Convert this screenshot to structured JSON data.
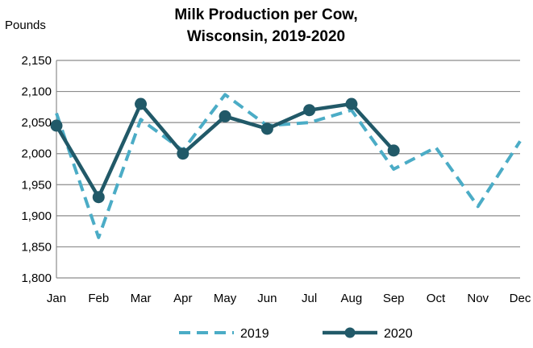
{
  "chart_data": {
    "type": "line",
    "title_line1": "Milk Production per Cow,",
    "title_line2": "Wisconsin, 2019-2020",
    "ylabel": "Pounds",
    "xlabel": "",
    "categories": [
      "Jan",
      "Feb",
      "Mar",
      "Apr",
      "May",
      "Jun",
      "Jul",
      "Aug",
      "Sep",
      "Oct",
      "Nov",
      "Dec"
    ],
    "ylim": [
      1800,
      2150
    ],
    "yticks": [
      1800,
      1850,
      1900,
      1950,
      2000,
      2050,
      2100,
      2150
    ],
    "ytick_labels": [
      "1,800",
      "1,850",
      "1,900",
      "1,950",
      "2,000",
      "2,050",
      "2,100",
      "2,150"
    ],
    "grid": true,
    "legend_position": "bottom",
    "series": [
      {
        "name": "2019",
        "color": "#4bacc6",
        "style": "dashed",
        "markers": false,
        "values": [
          2065,
          1865,
          2055,
          2005,
          2095,
          2045,
          2050,
          2070,
          1975,
          2010,
          1915,
          2020
        ]
      },
      {
        "name": "2020",
        "color": "#215968",
        "style": "solid",
        "markers": true,
        "values": [
          2045,
          1930,
          2080,
          2000,
          2060,
          2040,
          2070,
          2080,
          2005,
          null,
          null,
          null
        ]
      }
    ]
  }
}
